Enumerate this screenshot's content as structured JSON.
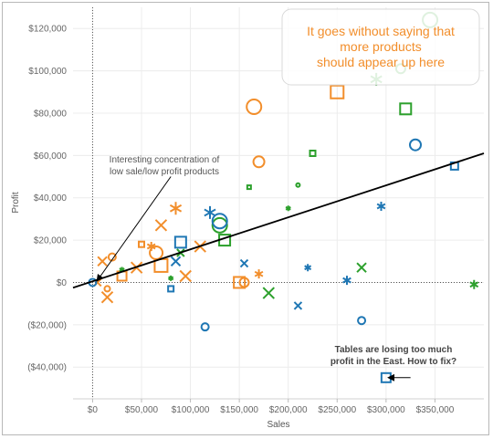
{
  "chart_data": {
    "type": "scatter",
    "xlabel": "Sales",
    "ylabel": "Profit",
    "xlim": [
      -20000,
      400000
    ],
    "ylim": [
      -55000,
      130000
    ],
    "x_ticks": [
      0,
      50000,
      100000,
      150000,
      200000,
      250000,
      300000,
      350000
    ],
    "x_tick_labels": [
      "$0",
      "$50,000",
      "$100,000",
      "$150,000",
      "$200,000",
      "$250,000",
      "$300,000",
      "$350,000"
    ],
    "y_ticks": [
      -40000,
      -20000,
      0,
      20000,
      40000,
      60000,
      80000,
      100000,
      120000
    ],
    "y_tick_labels": [
      "($40,000)",
      "($20,000)",
      "$0",
      "$20,000",
      "$40,000",
      "$60,000",
      "$80,000",
      "$100,000",
      "$120,000"
    ],
    "grid": true,
    "zero_lines": "dotted",
    "colors": {
      "blue": "#1f77b4",
      "orange": "#f28e2b",
      "green": "#2ca02c"
    },
    "trend_line": {
      "x": [
        -20000,
        400000
      ],
      "y": [
        -2500,
        61000
      ]
    },
    "points": [
      {
        "x": 165000,
        "y": 83000,
        "shape": "circle",
        "color": "orange",
        "size": 8
      },
      {
        "x": 250000,
        "y": 90000,
        "shape": "square",
        "color": "orange",
        "size": 7
      },
      {
        "x": 170000,
        "y": 57000,
        "shape": "circle",
        "color": "orange",
        "size": 6
      },
      {
        "x": 20000,
        "y": 12000,
        "shape": "circle",
        "color": "orange",
        "size": 4
      },
      {
        "x": 50000,
        "y": 18000,
        "shape": "square",
        "color": "orange",
        "size": 3
      },
      {
        "x": 65000,
        "y": 14000,
        "shape": "circle",
        "color": "orange",
        "size": 7
      },
      {
        "x": 70000,
        "y": 8000,
        "shape": "square",
        "color": "orange",
        "size": 7
      },
      {
        "x": 85000,
        "y": 35000,
        "shape": "asterisk",
        "color": "orange",
        "size": 7
      },
      {
        "x": 70000,
        "y": 27000,
        "shape": "x",
        "color": "orange",
        "size": 6
      },
      {
        "x": 110000,
        "y": 17000,
        "shape": "x",
        "color": "orange",
        "size": 6
      },
      {
        "x": 95000,
        "y": 3000,
        "shape": "x",
        "color": "orange",
        "size": 6
      },
      {
        "x": 10000,
        "y": 10000,
        "shape": "x",
        "color": "orange",
        "size": 5
      },
      {
        "x": 15000,
        "y": -7000,
        "shape": "x",
        "color": "orange",
        "size": 6
      },
      {
        "x": 45000,
        "y": 7000,
        "shape": "x",
        "color": "orange",
        "size": 6
      },
      {
        "x": 30000,
        "y": 3000,
        "shape": "square",
        "color": "orange",
        "size": 5
      },
      {
        "x": 150000,
        "y": 0,
        "shape": "square",
        "color": "orange",
        "size": 6
      },
      {
        "x": 155000,
        "y": 0,
        "shape": "circle",
        "color": "orange",
        "size": 5
      },
      {
        "x": 170000,
        "y": 4000,
        "shape": "asterisk",
        "color": "orange",
        "size": 5
      },
      {
        "x": 60000,
        "y": 17000,
        "shape": "asterisk",
        "color": "orange",
        "size": 5
      },
      {
        "x": 15000,
        "y": -3000,
        "shape": "circle",
        "color": "orange",
        "size": 3
      },
      {
        "x": 5000,
        "y": 0,
        "shape": "x",
        "color": "orange",
        "size": 4
      },
      {
        "x": 345000,
        "y": 124000,
        "shape": "circle",
        "color": "green",
        "size": 8
      },
      {
        "x": 315000,
        "y": 101000,
        "shape": "circle",
        "color": "green",
        "size": 5
      },
      {
        "x": 290000,
        "y": 96000,
        "shape": "asterisk",
        "color": "green",
        "size": 7
      },
      {
        "x": 320000,
        "y": 82000,
        "shape": "square",
        "color": "green",
        "size": 6
      },
      {
        "x": 225000,
        "y": 61000,
        "shape": "square",
        "color": "green",
        "size": 3
      },
      {
        "x": 210000,
        "y": 46000,
        "shape": "circle",
        "color": "green",
        "size": 2
      },
      {
        "x": 160000,
        "y": 45000,
        "shape": "square",
        "color": "green",
        "size": 2
      },
      {
        "x": 200000,
        "y": 35000,
        "shape": "asterisk",
        "color": "green",
        "size": 3
      },
      {
        "x": 130000,
        "y": 27000,
        "shape": "circle",
        "color": "green",
        "size": 8
      },
      {
        "x": 135000,
        "y": 20000,
        "shape": "square",
        "color": "green",
        "size": 6
      },
      {
        "x": 180000,
        "y": -5000,
        "shape": "x",
        "color": "green",
        "size": 6
      },
      {
        "x": 275000,
        "y": 7000,
        "shape": "x",
        "color": "green",
        "size": 5
      },
      {
        "x": 390000,
        "y": -1000,
        "shape": "asterisk",
        "color": "green",
        "size": 5
      },
      {
        "x": 90000,
        "y": 14000,
        "shape": "x",
        "color": "green",
        "size": 4
      },
      {
        "x": 80000,
        "y": 2000,
        "shape": "asterisk",
        "color": "green",
        "size": 3
      },
      {
        "x": 30000,
        "y": 6000,
        "shape": "asterisk",
        "color": "green",
        "size": 3
      },
      {
        "x": 120000,
        "y": 33000,
        "shape": "asterisk",
        "color": "blue",
        "size": 7
      },
      {
        "x": 130000,
        "y": 29000,
        "shape": "circle",
        "color": "blue",
        "size": 8
      },
      {
        "x": 90000,
        "y": 19000,
        "shape": "square",
        "color": "blue",
        "size": 6
      },
      {
        "x": 330000,
        "y": 65000,
        "shape": "circle",
        "color": "blue",
        "size": 6
      },
      {
        "x": 370000,
        "y": 55000,
        "shape": "square",
        "color": "blue",
        "size": 4
      },
      {
        "x": 295000,
        "y": 36000,
        "shape": "asterisk",
        "color": "blue",
        "size": 5
      },
      {
        "x": 220000,
        "y": 7000,
        "shape": "asterisk",
        "color": "blue",
        "size": 4
      },
      {
        "x": 260000,
        "y": 1000,
        "shape": "asterisk",
        "color": "blue",
        "size": 5
      },
      {
        "x": 155000,
        "y": 9000,
        "shape": "x",
        "color": "blue",
        "size": 4
      },
      {
        "x": 210000,
        "y": -11000,
        "shape": "x",
        "color": "blue",
        "size": 4
      },
      {
        "x": 115000,
        "y": -21000,
        "shape": "circle",
        "color": "blue",
        "size": 4
      },
      {
        "x": 275000,
        "y": -18000,
        "shape": "circle",
        "color": "blue",
        "size": 4
      },
      {
        "x": 80000,
        "y": -3000,
        "shape": "square",
        "color": "blue",
        "size": 3
      },
      {
        "x": 85000,
        "y": 10000,
        "shape": "x",
        "color": "blue",
        "size": 5
      },
      {
        "x": 300000,
        "y": -45000,
        "shape": "square",
        "color": "blue",
        "size": 5
      },
      {
        "x": 0,
        "y": 0,
        "shape": "circle",
        "color": "blue",
        "size": 4
      }
    ],
    "annotations": [
      {
        "name": "concentration-note",
        "lines": [
          "Interesting concentration of",
          "low sale/low profit products"
        ],
        "style": "normal",
        "arrow_from": [
          80000,
          50000
        ],
        "arrow_to": [
          5000,
          1000
        ]
      },
      {
        "name": "east-note",
        "lines": [
          "Tables are losing too much",
          "profit in the East. How to fix?"
        ],
        "style": "bold",
        "arrow_from": [
          325000,
          -45000
        ],
        "arrow_to": [
          303000,
          -45000
        ]
      }
    ],
    "callout": {
      "lines": [
        "It goes without saying that",
        "more products",
        "should appear up here"
      ]
    }
  }
}
